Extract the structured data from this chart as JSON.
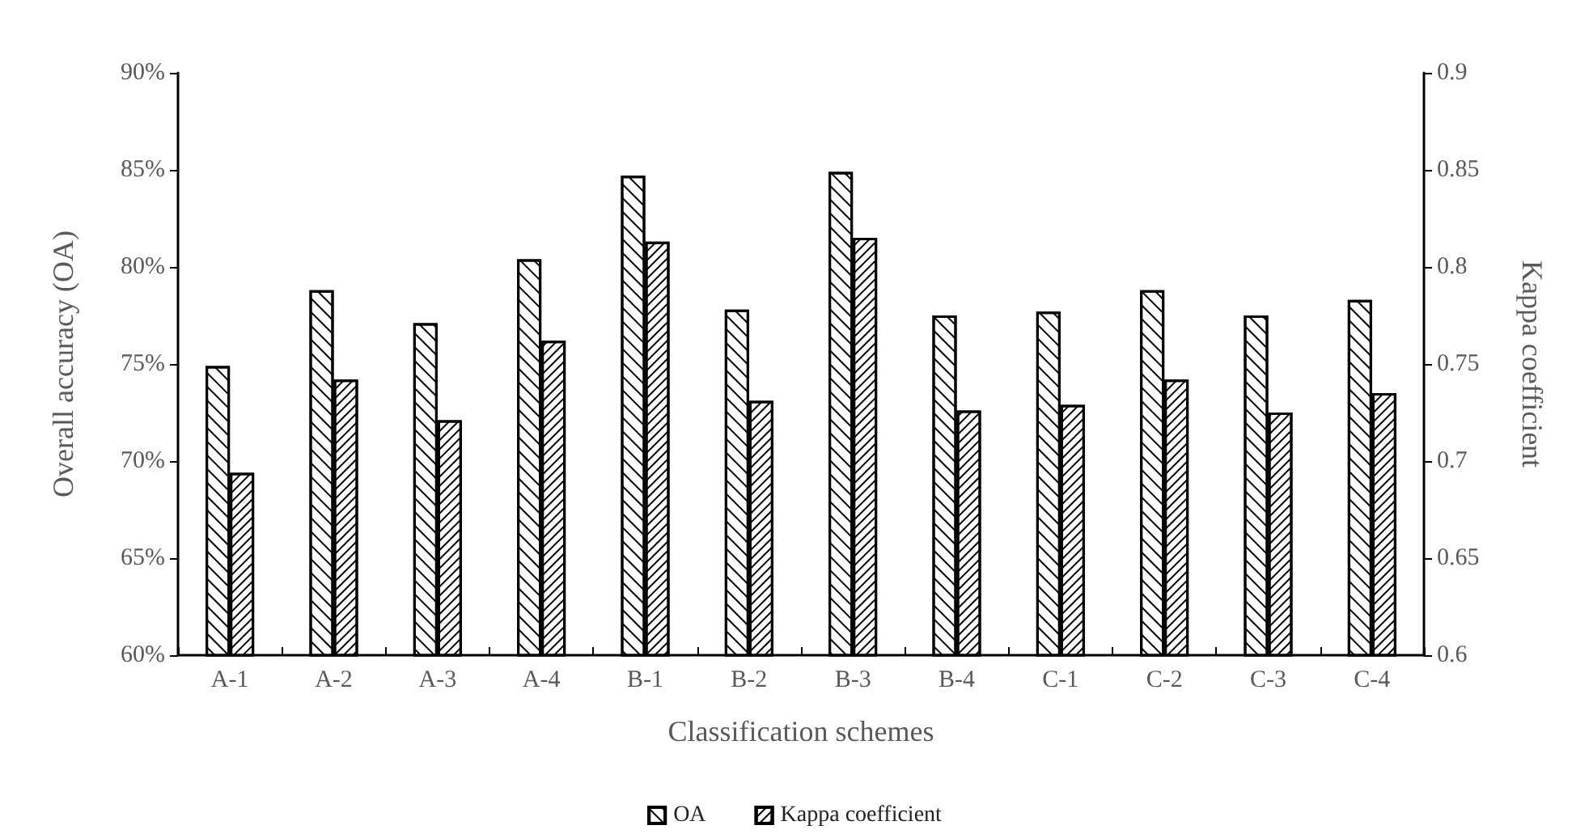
{
  "chart_data": {
    "type": "bar",
    "xlabel": "Classification schemes",
    "ylabel": "Overall accuracy (OA)",
    "y2label": "Kappa coefficient",
    "categories": [
      "A-1",
      "A-2",
      "A-3",
      "A-4",
      "B-1",
      "B-2",
      "B-3",
      "B-4",
      "C-1",
      "C-2",
      "C-3",
      "C-4"
    ],
    "series": [
      {
        "name": "OA",
        "color": "#ffffff",
        "values": [
          74.9,
          78.8,
          77.1,
          80.4,
          84.7,
          77.8,
          84.9,
          77.5,
          77.7,
          78.8,
          77.5,
          78.3
        ]
      },
      {
        "name": "Kappa coefficient",
        "color": "#ffffff",
        "axis": "y2",
        "values": [
          0.694,
          0.742,
          0.721,
          0.762,
          0.813,
          0.731,
          0.815,
          0.726,
          0.729,
          0.742,
          0.725,
          0.735
        ]
      }
    ],
    "ylim": [
      60,
      90
    ],
    "yticks": [
      {
        "value": 60,
        "label": "60%"
      },
      {
        "value": 65,
        "label": "65%"
      },
      {
        "value": 70,
        "label": "70%"
      },
      {
        "value": 75,
        "label": "75%"
      },
      {
        "value": 80,
        "label": "80%"
      },
      {
        "value": 85,
        "label": "85%"
      },
      {
        "value": 90,
        "label": "90%"
      }
    ],
    "y2lim": [
      0.6,
      0.9
    ],
    "y2ticks": [
      0.6,
      0.65,
      0.7,
      0.75,
      0.8,
      0.85,
      0.9
    ],
    "grid": false,
    "legend": "bottom"
  }
}
